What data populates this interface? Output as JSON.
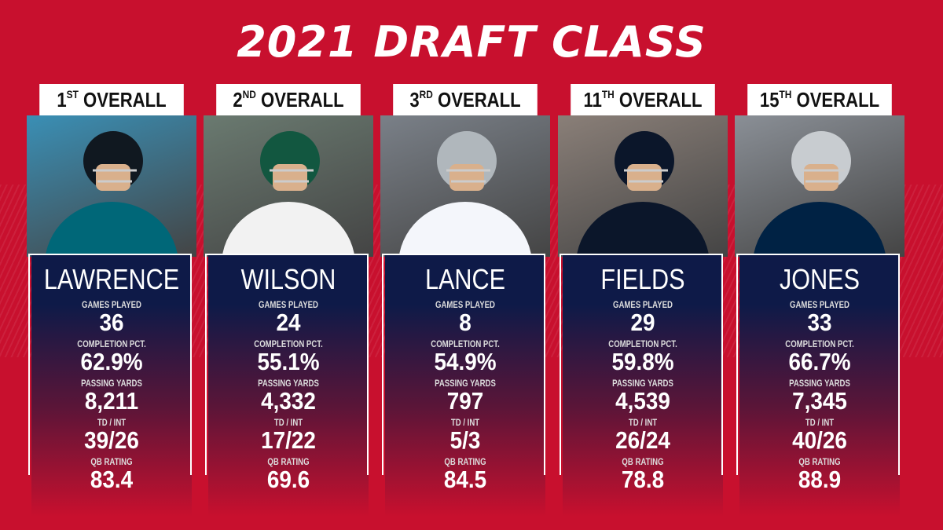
{
  "title": "2021 DRAFT CLASS",
  "labels": {
    "games": "GAMES PLAYED",
    "comp": "COMPLETION PCT.",
    "yards": "PASSING YARDS",
    "tdint": "TD / INT",
    "rating": "QB RATING"
  },
  "players": [
    {
      "pick": "1",
      "suffix": "ST",
      "overall": "OVERALL",
      "name": "LAWRENCE",
      "games": "36",
      "comp": "62.9%",
      "yards": "8,211",
      "tdint": "39/26",
      "rating": "83.4",
      "team_color": "#006778",
      "helmet": "#101820"
    },
    {
      "pick": "2",
      "suffix": "ND",
      "overall": "OVERALL",
      "name": "WILSON",
      "games": "24",
      "comp": "55.1%",
      "yards": "4,332",
      "tdint": "17/22",
      "rating": "69.6",
      "team_color": "#f2f2f2",
      "helmet": "#125740"
    },
    {
      "pick": "3",
      "suffix": "RD",
      "overall": "OVERALL",
      "name": "LANCE",
      "games": "8",
      "comp": "54.9%",
      "yards": "797",
      "tdint": "5/3",
      "rating": "84.5",
      "team_color": "#f4f6fb",
      "helmet": "#b0b7bc"
    },
    {
      "pick": "11",
      "suffix": "TH",
      "overall": "OVERALL",
      "name": "FIELDS",
      "games": "29",
      "comp": "59.8%",
      "yards": "4,539",
      "tdint": "26/24",
      "rating": "78.8",
      "team_color": "#0b162a",
      "helmet": "#0b162a"
    },
    {
      "pick": "15",
      "suffix": "TH",
      "overall": "OVERALL",
      "name": "JONES",
      "games": "33",
      "comp": "66.7%",
      "yards": "7,345",
      "tdint": "40/26",
      "rating": "88.9",
      "team_color": "#002244",
      "helmet": "#c8ccd0"
    }
  ]
}
